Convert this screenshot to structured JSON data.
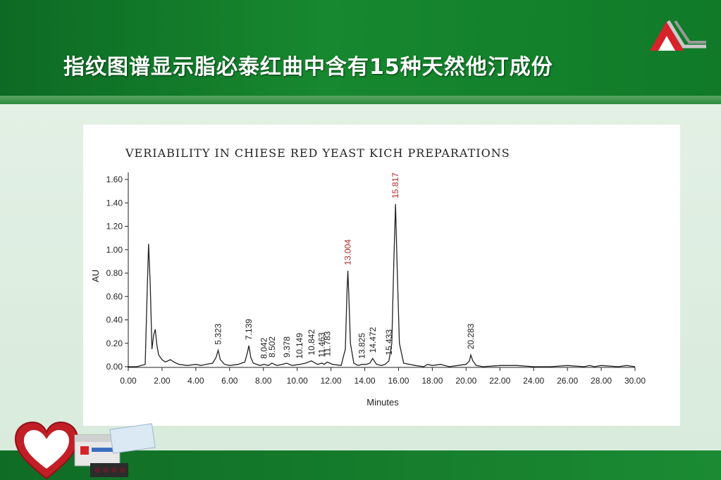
{
  "slide": {
    "title": "指纹图谱显示脂必泰红曲中含有15种天然他汀成份"
  },
  "colors": {
    "header_green": "#107a29",
    "highlight_red": "#b22a2a",
    "trace": "#222222"
  },
  "icons": [
    "brand-logo-icon",
    "heart-icon",
    "product-box-icon"
  ],
  "chart_data": {
    "type": "line",
    "title": "VERIABILITY IN CHIESE RED YEAST KICH PREPARATIONS",
    "xlabel": "Minutes",
    "ylabel": "AU",
    "xlim": [
      0,
      30
    ],
    "ylim": [
      0,
      1.6
    ],
    "x_ticks": [
      "0.00",
      "2.00",
      "4.00",
      "6.00",
      "8.00",
      "10.00",
      "12.00",
      "14.00",
      "16.00",
      "18.00",
      "20.00",
      "22.00",
      "24.00",
      "26.00",
      "28.00",
      "30.00"
    ],
    "y_ticks": [
      "0.00",
      "0.20",
      "0.40",
      "0.60",
      "0.80",
      "1.00",
      "1.20",
      "1.40",
      "1.60"
    ],
    "grid": false,
    "series": [
      {
        "x": [
          0.0,
          0.5,
          1.0,
          1.1,
          1.2,
          1.3,
          1.4,
          1.5,
          1.6,
          1.7,
          1.8,
          2.0,
          2.2,
          2.5,
          2.7,
          3.0,
          3.5,
          4.0,
          4.3,
          4.6,
          5.0,
          5.2,
          5.32,
          5.45,
          5.7,
          6.0,
          6.5,
          6.9,
          7.05,
          7.14,
          7.25,
          7.4,
          7.8,
          8.04,
          8.3,
          8.5,
          8.8,
          9.1,
          9.38,
          9.7,
          10.15,
          10.5,
          10.84,
          11.2,
          11.46,
          11.6,
          11.78,
          12.1,
          12.6,
          12.85,
          12.95,
          13.0,
          13.06,
          13.15,
          13.35,
          13.6,
          13.83,
          14.1,
          14.3,
          14.47,
          14.7,
          15.0,
          15.2,
          15.43,
          15.6,
          15.72,
          15.82,
          15.92,
          16.05,
          16.3,
          17.0,
          17.5,
          17.7,
          18.0,
          18.5,
          19.0,
          19.5,
          20.0,
          20.2,
          20.28,
          20.4,
          20.6,
          21.0,
          22.0,
          23.0,
          24.0,
          25.0,
          26.0,
          27.0,
          27.3,
          27.6,
          28.0,
          29.0,
          29.5,
          30.0
        ],
        "y": [
          0.0,
          0.0,
          0.02,
          0.55,
          1.05,
          0.7,
          0.15,
          0.27,
          0.32,
          0.18,
          0.1,
          0.06,
          0.04,
          0.06,
          0.04,
          0.02,
          0.01,
          0.02,
          0.01,
          0.02,
          0.03,
          0.08,
          0.14,
          0.06,
          0.02,
          0.01,
          0.02,
          0.04,
          0.12,
          0.18,
          0.08,
          0.03,
          0.01,
          0.02,
          0.01,
          0.03,
          0.01,
          0.02,
          0.03,
          0.01,
          0.02,
          0.03,
          0.05,
          0.02,
          0.03,
          0.02,
          0.04,
          0.02,
          0.01,
          0.15,
          0.65,
          0.82,
          0.6,
          0.2,
          0.03,
          0.01,
          0.02,
          0.02,
          0.03,
          0.07,
          0.02,
          0.01,
          0.02,
          0.05,
          0.2,
          0.9,
          1.39,
          0.85,
          0.2,
          0.03,
          0.01,
          0.0,
          0.02,
          0.01,
          0.02,
          0.0,
          0.01,
          0.02,
          0.05,
          0.1,
          0.05,
          0.01,
          0.0,
          0.01,
          0.01,
          0.0,
          0.0,
          0.01,
          0.0,
          0.01,
          0.0,
          0.01,
          0.0,
          0.01,
          0.0
        ]
      }
    ],
    "peaks": [
      {
        "label": "5.323",
        "x": 5.323,
        "y": 0.14,
        "highlight": false
      },
      {
        "label": "7.139",
        "x": 7.139,
        "y": 0.18,
        "highlight": false
      },
      {
        "label": "8.042",
        "x": 8.042,
        "y": 0.02,
        "highlight": false
      },
      {
        "label": "8.502",
        "x": 8.502,
        "y": 0.03,
        "highlight": false
      },
      {
        "label": "9.378",
        "x": 9.378,
        "y": 0.03,
        "highlight": false
      },
      {
        "label": "10.149",
        "x": 10.149,
        "y": 0.02,
        "highlight": false
      },
      {
        "label": "10.842",
        "x": 10.842,
        "y": 0.05,
        "highlight": false
      },
      {
        "label": "11.463",
        "x": 11.463,
        "y": 0.03,
        "highlight": false
      },
      {
        "label": "11.783",
        "x": 11.783,
        "y": 0.04,
        "highlight": false
      },
      {
        "label": "13.004",
        "x": 13.004,
        "y": 0.82,
        "highlight": true
      },
      {
        "label": "13.825",
        "x": 13.825,
        "y": 0.02,
        "highlight": false
      },
      {
        "label": "14.472",
        "x": 14.472,
        "y": 0.07,
        "highlight": false
      },
      {
        "label": "15.433",
        "x": 15.433,
        "y": 0.05,
        "highlight": false
      },
      {
        "label": "15.817",
        "x": 15.817,
        "y": 1.39,
        "highlight": true
      },
      {
        "label": "20.283",
        "x": 20.283,
        "y": 0.1,
        "highlight": false
      }
    ]
  }
}
